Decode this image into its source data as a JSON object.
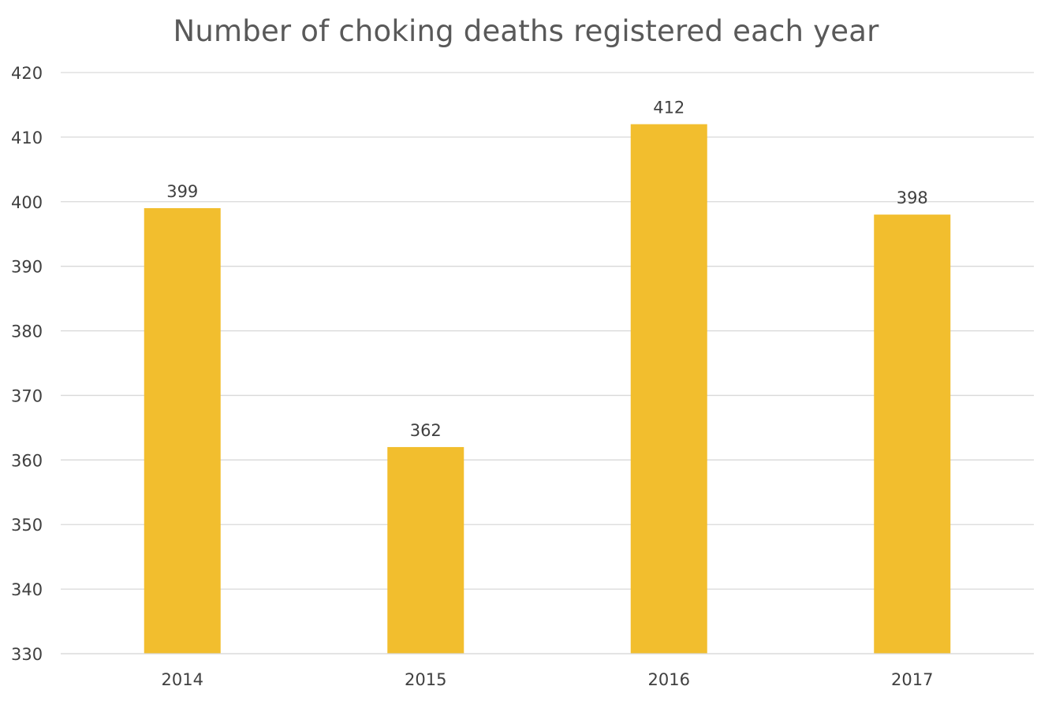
{
  "chart_data": {
    "type": "bar",
    "title": "Number of choking deaths registered each year",
    "categories": [
      "2014",
      "2015",
      "2016",
      "2017"
    ],
    "values": [
      399,
      362,
      412,
      398
    ],
    "data_labels": [
      "399",
      "362",
      "412",
      "398"
    ],
    "ylim": [
      330,
      420
    ],
    "y_ticks": [
      330,
      340,
      350,
      360,
      370,
      380,
      390,
      400,
      410,
      420
    ],
    "xlabel": "",
    "ylabel": "",
    "grid": true,
    "legend": "none",
    "bar_color": "#F2BE2E",
    "grid_color": "#D9D9D9"
  }
}
